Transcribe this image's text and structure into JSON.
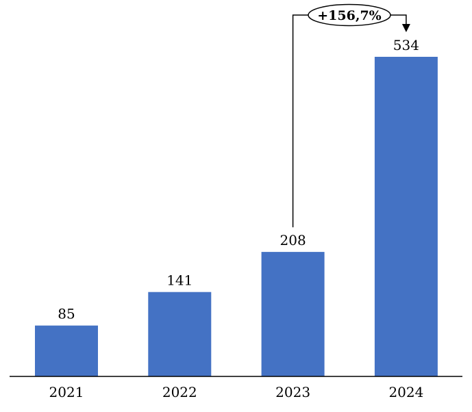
{
  "chart_data": {
    "type": "bar",
    "categories": [
      "2021",
      "2022",
      "2023",
      "2024"
    ],
    "values": [
      85,
      141,
      208,
      534
    ],
    "data_labels": [
      "85",
      "141",
      "208",
      "534"
    ],
    "title": "",
    "xlabel": "",
    "ylabel": "",
    "ylim": [
      0,
      534
    ],
    "grid": false,
    "bar_color": "#4472C4",
    "annotation": {
      "text": "+156,7%",
      "from": "2023",
      "to": "2024"
    }
  }
}
